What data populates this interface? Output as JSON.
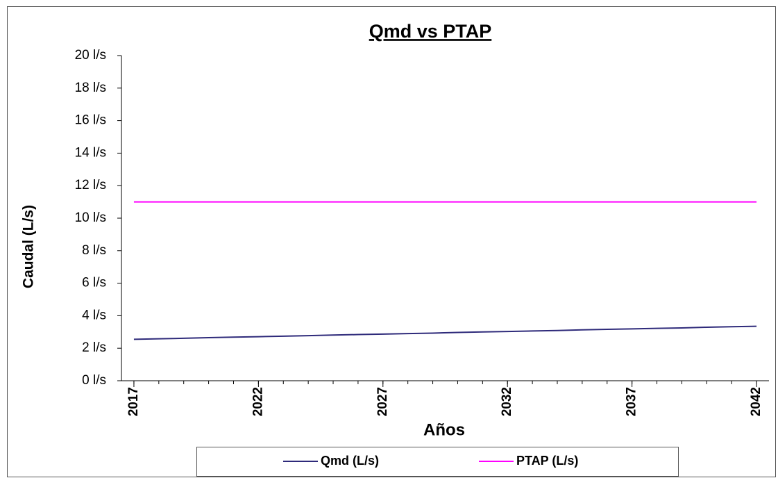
{
  "chart_data": {
    "type": "line",
    "title": "Qmd vs PTAP",
    "x_label": "Años",
    "y_label": "Caudal (L/s)",
    "x": [
      2017,
      2018,
      2019,
      2020,
      2021,
      2022,
      2023,
      2024,
      2025,
      2026,
      2027,
      2028,
      2029,
      2030,
      2031,
      2032,
      2033,
      2034,
      2035,
      2036,
      2037,
      2038,
      2039,
      2040,
      2041,
      2042
    ],
    "xlim": [
      2016.5,
      2042.5
    ],
    "xticks": [
      2017,
      2022,
      2027,
      2032,
      2037,
      2042
    ],
    "ylim": [
      0,
      20
    ],
    "yticks": [
      {
        "value": 0,
        "label": "0 l/s"
      },
      {
        "value": 2,
        "label": "2 l/s"
      },
      {
        "value": 4,
        "label": "4 l/s"
      },
      {
        "value": 6,
        "label": "6 l/s"
      },
      {
        "value": 8,
        "label": "8 l/s"
      },
      {
        "value": 10,
        "label": "10 l/s"
      },
      {
        "value": 12,
        "label": "12 l/s"
      },
      {
        "value": 14,
        "label": "14 l/s"
      },
      {
        "value": 16,
        "label": "16 l/s"
      },
      {
        "value": 18,
        "label": "18 l/s"
      },
      {
        "value": 20,
        "label": "20 l/s"
      }
    ],
    "grid": false,
    "legend": "bottom",
    "series": [
      {
        "name": "Qmd (L/s)",
        "color": "#2e2a7a",
        "values": [
          2.55,
          2.58,
          2.61,
          2.65,
          2.68,
          2.71,
          2.74,
          2.77,
          2.81,
          2.84,
          2.87,
          2.9,
          2.93,
          2.97,
          3.0,
          3.03,
          3.06,
          3.09,
          3.13,
          3.16,
          3.19,
          3.22,
          3.25,
          3.29,
          3.32,
          3.35
        ]
      },
      {
        "name": "PTAP (L/s)",
        "color": "#ff00ff",
        "values": [
          11,
          11,
          11,
          11,
          11,
          11,
          11,
          11,
          11,
          11,
          11,
          11,
          11,
          11,
          11,
          11,
          11,
          11,
          11,
          11,
          11,
          11,
          11,
          11,
          11,
          11
        ]
      }
    ]
  }
}
